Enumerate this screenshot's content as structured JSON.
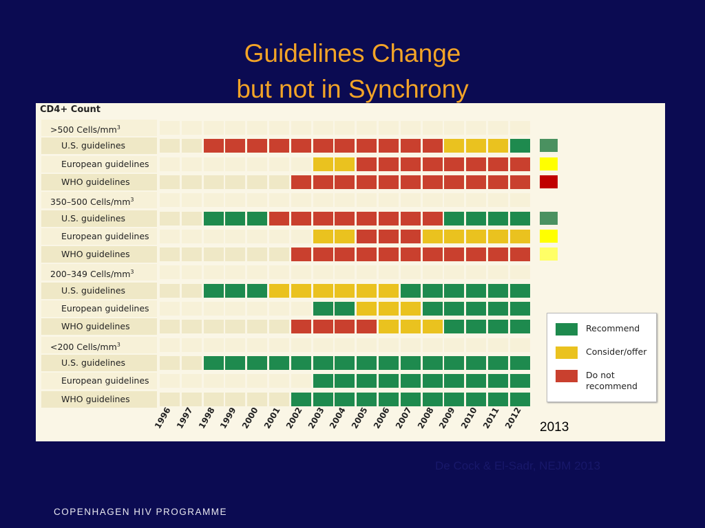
{
  "slide": {
    "title_line1": "Guidelines Change",
    "title_line2": "but not in Synchrony",
    "extra_year": "2013",
    "source": "De Cock & El-Sadr, NEJM 2013",
    "footer": "COPENHAGEN HIV PROGRAMME"
  },
  "chart_data": {
    "type": "heatmap",
    "title": "CD4+ Count",
    "years": [
      "1996",
      "1997",
      "1998",
      "1999",
      "2000",
      "2001",
      "2002",
      "2003",
      "2004",
      "2005",
      "2006",
      "2007",
      "2008",
      "2009",
      "2010",
      "2011",
      "2012"
    ],
    "legend": [
      {
        "key": "R",
        "label": "Recommend",
        "color": "#1e8a4e"
      },
      {
        "key": "C",
        "label": "Consider/offer",
        "color": "#eac21f"
      },
      {
        "key": "D",
        "label": "Do not recommend",
        "color": "#c9402e"
      }
    ],
    "groups": [
      {
        "label": ">500 Cells/mm",
        "sup": "3",
        "rows": [
          {
            "label": "U.S. guidelines",
            "values": [
              "",
              "",
              "D",
              "D",
              "D",
              "D",
              "D",
              "D",
              "D",
              "D",
              "D",
              "D",
              "D",
              "C",
              "C",
              "C",
              "R"
            ],
            "extra_2013": "#4a9160"
          },
          {
            "label": "European guidelines",
            "values": [
              "",
              "",
              "",
              "",
              "",
              "",
              "",
              "C",
              "C",
              "D",
              "D",
              "D",
              "D",
              "D",
              "D",
              "D",
              "D"
            ],
            "extra_2013": "#ffff00"
          },
          {
            "label": "WHO guidelines",
            "values": [
              "",
              "",
              "",
              "",
              "",
              "",
              "D",
              "D",
              "D",
              "D",
              "D",
              "D",
              "D",
              "D",
              "D",
              "D",
              "D"
            ],
            "extra_2013": "#c00000"
          }
        ]
      },
      {
        "label": "350–500 Cells/mm",
        "sup": "3",
        "rows": [
          {
            "label": "U.S. guidelines",
            "values": [
              "",
              "",
              "R",
              "R",
              "R",
              "D",
              "D",
              "D",
              "D",
              "D",
              "D",
              "D",
              "D",
              "R",
              "R",
              "R",
              "R"
            ],
            "extra_2013": "#4a9160"
          },
          {
            "label": "European guidelines",
            "values": [
              "",
              "",
              "",
              "",
              "",
              "",
              "",
              "C",
              "C",
              "D",
              "D",
              "D",
              "C",
              "C",
              "C",
              "C",
              "C"
            ],
            "extra_2013": "#ffff00"
          },
          {
            "label": "WHO guidelines",
            "values": [
              "",
              "",
              "",
              "",
              "",
              "",
              "D",
              "D",
              "D",
              "D",
              "D",
              "D",
              "D",
              "D",
              "D",
              "D",
              "D"
            ],
            "extra_2013": "#ffff66"
          }
        ]
      },
      {
        "label": "200–349 Cells/mm",
        "sup": "3",
        "rows": [
          {
            "label": "U.S. guidelines",
            "values": [
              "",
              "",
              "R",
              "R",
              "R",
              "C",
              "C",
              "C",
              "C",
              "C",
              "C",
              "R",
              "R",
              "R",
              "R",
              "R",
              "R"
            ]
          },
          {
            "label": "European guidelines",
            "values": [
              "",
              "",
              "",
              "",
              "",
              "",
              "",
              "R",
              "R",
              "C",
              "C",
              "C",
              "R",
              "R",
              "R",
              "R",
              "R"
            ]
          },
          {
            "label": "WHO guidelines",
            "values": [
              "",
              "",
              "",
              "",
              "",
              "",
              "D",
              "D",
              "D",
              "D",
              "C",
              "C",
              "C",
              "R",
              "R",
              "R",
              "R"
            ]
          }
        ]
      },
      {
        "label": "<200 Cells/mm",
        "sup": "3",
        "rows": [
          {
            "label": "U.S. guidelines",
            "values": [
              "",
              "",
              "R",
              "R",
              "R",
              "R",
              "R",
              "R",
              "R",
              "R",
              "R",
              "R",
              "R",
              "R",
              "R",
              "R",
              "R"
            ]
          },
          {
            "label": "European guidelines",
            "values": [
              "",
              "",
              "",
              "",
              "",
              "",
              "",
              "R",
              "R",
              "R",
              "R",
              "R",
              "R",
              "R",
              "R",
              "R",
              "R"
            ]
          },
          {
            "label": "WHO guidelines",
            "values": [
              "",
              "",
              "",
              "",
              "",
              "",
              "R",
              "R",
              "R",
              "R",
              "R",
              "R",
              "R",
              "R",
              "R",
              "R",
              "R"
            ]
          }
        ]
      }
    ]
  }
}
